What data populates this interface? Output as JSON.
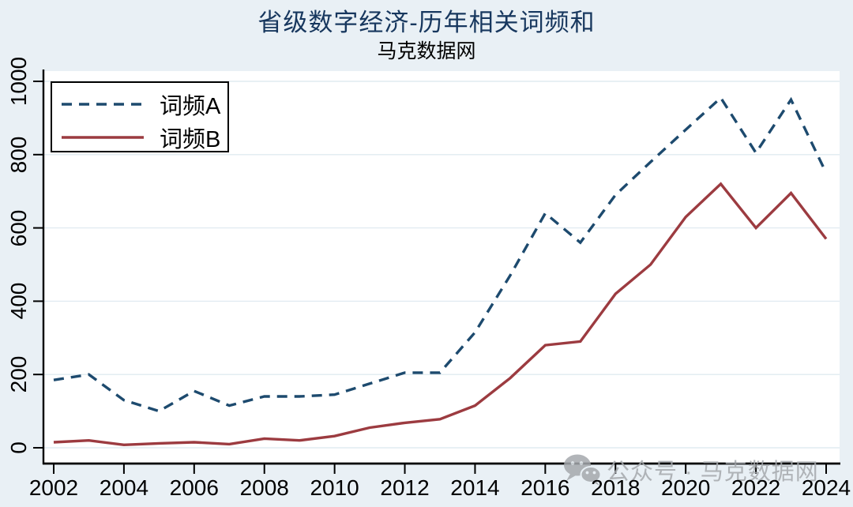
{
  "title": "省级数字经济-历年相关词频和",
  "subtitle": "马克数据网",
  "watermark": {
    "icon": "wechat-icon",
    "text": "公众号 · 马克数据网"
  },
  "colors": {
    "background": "#e9f0f5",
    "plot_background": "#ffffff",
    "gridline": "#e1ebf1",
    "axis": "#000000",
    "title_text": "#17375e",
    "watermark_gray": "#a5a9ad",
    "series_a": "#1d4a6e",
    "series_b": "#9c3b40"
  },
  "chart_data": {
    "type": "line",
    "title": "省级数字经济-历年相关词频和",
    "subtitle": "马克数据网",
    "xlabel": "",
    "ylabel": "",
    "xlim": [
      2002,
      2024
    ],
    "ylim": [
      0,
      1000
    ],
    "grid": true,
    "legend_position": "top-left",
    "x": [
      2002,
      2003,
      2004,
      2005,
      2006,
      2007,
      2008,
      2009,
      2010,
      2011,
      2012,
      2013,
      2014,
      2015,
      2016,
      2017,
      2018,
      2019,
      2020,
      2021,
      2022,
      2023,
      2024
    ],
    "x_ticks": [
      "2002",
      "2004",
      "2006",
      "2008",
      "2010",
      "2012",
      "2014",
      "2016",
      "2018",
      "2020",
      "2022",
      "2024"
    ],
    "y_ticks": [
      "0",
      "200",
      "400",
      "600",
      "800",
      "1000"
    ],
    "series": [
      {
        "name": "词频A",
        "style": "dashed",
        "color": "#1d4a6e",
        "values": [
          185,
          200,
          130,
          100,
          155,
          115,
          140,
          140,
          145,
          175,
          205,
          205,
          315,
          470,
          640,
          560,
          690,
          780,
          868,
          955,
          805,
          950,
          750
        ]
      },
      {
        "name": "词频B",
        "style": "solid",
        "color": "#9c3b40",
        "values": [
          15,
          20,
          8,
          12,
          15,
          10,
          25,
          20,
          32,
          55,
          68,
          78,
          115,
          190,
          280,
          290,
          420,
          500,
          630,
          720,
          600,
          695,
          570
        ]
      }
    ]
  }
}
